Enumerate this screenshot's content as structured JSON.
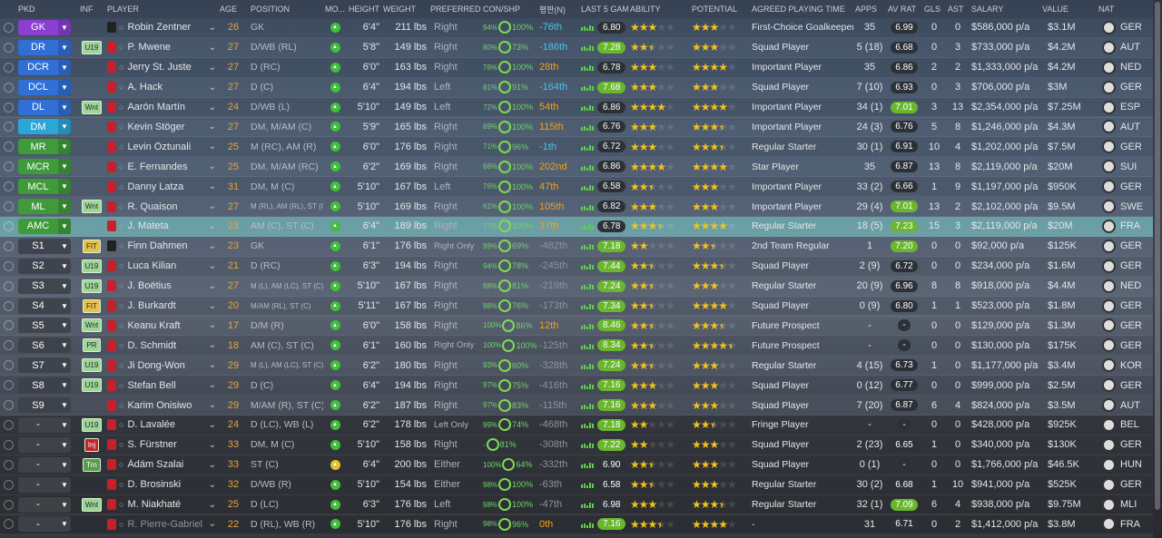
{
  "header": {
    "columns": [
      "PKD",
      "INF",
      "PLAYER",
      "AGE",
      "POSITION",
      "MO...",
      "HEIGHT",
      "WEIGHT",
      "PREFERRED...",
      "CON/SHP",
      "평판(N)",
      "LAST 5 GAM...",
      "ABILITY",
      "POTENTIAL",
      "AGREED PLAYING TIME",
      "APPS",
      "AV RAT",
      "GLS",
      "AST",
      "SALARY",
      "VALUE",
      "NAT"
    ]
  },
  "table": {
    "rows": [
      {
        "pkd": "GK",
        "player": "Robin Zentner",
        "age": 26,
        "position": "GK",
        "height": "6'4\"",
        "weight": "211 lbs",
        "foot": "Right",
        "con": "94%",
        "shp": "100%",
        "rank": "-76th",
        "last5": "6.80",
        "ability": 3,
        "potential": 3,
        "time": "First-Choice Goalkeeper",
        "apps": "35",
        "avrat": "6.99",
        "gls": 0,
        "ast": 0,
        "salary": "$586,000 p/a",
        "value": "$3.1M",
        "nat": "GER"
      },
      {
        "pkd": "DR",
        "inf": "U19",
        "player": "P. Mwene",
        "age": 27,
        "position": "D/WB (RL)",
        "height": "5'8\"",
        "weight": "149 lbs",
        "foot": "Right",
        "con": "80%",
        "shp": "73%",
        "rank": "-186th",
        "last5": "7.28",
        "ability": 2.5,
        "potential": 3,
        "time": "Squad Player",
        "apps": "5 (18)",
        "avrat": "6.68",
        "gls": 0,
        "ast": 3,
        "salary": "$733,000 p/a",
        "value": "$4.2M",
        "nat": "AUT"
      },
      {
        "pkd": "DCR",
        "player": "Jerry St. Juste",
        "age": 27,
        "position": "D (RC)",
        "height": "6'0\"",
        "weight": "163 lbs",
        "foot": "Right",
        "con": "76%",
        "shp": "100%",
        "rank": "28th",
        "last5": "6.78",
        "ability": 3,
        "potential": 4,
        "time": "Important Player",
        "apps": "35",
        "avrat": "6.86",
        "gls": 2,
        "ast": 2,
        "salary": "$1,333,000 p/a",
        "value": "$4.2M",
        "nat": "NED"
      },
      {
        "pkd": "DCL",
        "player": "A. Hack",
        "age": 27,
        "position": "D (C)",
        "height": "6'4\"",
        "weight": "194 lbs",
        "foot": "Left",
        "con": "81%",
        "shp": "91%",
        "rank": "-164th",
        "last5": "7.68",
        "ability": 3,
        "potential": 3,
        "time": "Squad Player",
        "apps": "7 (10)",
        "avrat": "6.93",
        "gls": 0,
        "ast": 3,
        "salary": "$706,000 p/a",
        "value": "$3M",
        "nat": "GER"
      },
      {
        "pkd": "DL",
        "inf": "Wnt",
        "player": "Aarón Martín",
        "age": 24,
        "position": "D/WB (L)",
        "height": "5'10\"",
        "weight": "149 lbs",
        "foot": "Left",
        "con": "72%",
        "shp": "100%",
        "rank": "54th",
        "last5": "6.86",
        "ability": 4,
        "potential": 4,
        "time": "Important Player",
        "apps": "34 (1)",
        "avrat": "7.01",
        "gls": 3,
        "ast": 13,
        "salary": "$2,354,000 p/a",
        "value": "$7.25M",
        "nat": "ESP"
      },
      {
        "pkd": "DM",
        "player": "Kevin Stöger",
        "age": 27,
        "position": "DM, M/AM (C)",
        "height": "5'9\"",
        "weight": "165 lbs",
        "foot": "Right",
        "con": "69%",
        "shp": "100%",
        "rank": "115th",
        "last5": "6.76",
        "ability": 3,
        "potential": 3.5,
        "time": "Important Player",
        "apps": "24 (3)",
        "avrat": "6.76",
        "gls": 5,
        "ast": 8,
        "salary": "$1,246,000 p/a",
        "value": "$4.3M",
        "nat": "AUT"
      },
      {
        "pkd": "MR",
        "player": "Levin Öztunali",
        "age": 25,
        "position": "M (RC), AM (R)",
        "height": "6'0\"",
        "weight": "176 lbs",
        "foot": "Right",
        "con": "71%",
        "shp": "96%",
        "rank": "-1th",
        "last5": "6.72",
        "ability": 3,
        "potential": 3.5,
        "time": "Regular Starter",
        "apps": "30 (1)",
        "avrat": "6.91",
        "gls": 10,
        "ast": 4,
        "salary": "$1,202,000 p/a",
        "value": "$7.5M",
        "nat": "GER"
      },
      {
        "pkd": "MCR",
        "player": "E. Fernandes",
        "age": 25,
        "position": "DM, M/AM (RC)",
        "height": "6'2\"",
        "weight": "169 lbs",
        "foot": "Right",
        "con": "66%",
        "shp": "100%",
        "rank": "202nd",
        "last5": "6.86",
        "ability": 4,
        "potential": 4,
        "time": "Star Player",
        "apps": "35",
        "avrat": "6.87",
        "gls": 13,
        "ast": 8,
        "salary": "$2,119,000 p/a",
        "value": "$20M",
        "nat": "SUI"
      },
      {
        "pkd": "MCL",
        "player": "Danny Latza",
        "age": 31,
        "position": "DM, M (C)",
        "height": "5'10\"",
        "weight": "167 lbs",
        "foot": "Left",
        "con": "76%",
        "shp": "100%",
        "rank": "47th",
        "last5": "6.58",
        "ability": 2.5,
        "potential": 3,
        "time": "Important Player",
        "apps": "33 (2)",
        "avrat": "6.66",
        "gls": 1,
        "ast": 9,
        "salary": "$1,197,000 p/a",
        "value": "$950K",
        "nat": "GER"
      },
      {
        "pkd": "ML",
        "inf": "Wnt",
        "player": "R. Quaison",
        "age": 27,
        "position": "M (RL), AM (RL), ST (C)",
        "height": "5'10\"",
        "weight": "169 lbs",
        "foot": "Right",
        "con": "61%",
        "shp": "100%",
        "rank": "105th",
        "last5": "6.82",
        "ability": 3,
        "potential": 3,
        "time": "Important Player",
        "apps": "29 (4)",
        "avrat": "7.01",
        "gls": 13,
        "ast": 2,
        "salary": "$2,102,000 p/a",
        "value": "$9.5M",
        "nat": "SWE"
      },
      {
        "pkd": "AMC",
        "player": "J. Mateta",
        "age": 23,
        "position": "AM (C), ST (C)",
        "height": "6'4\"",
        "weight": "189 lbs",
        "foot": "Right",
        "con": "77%",
        "shp": "100%",
        "rank": "37th",
        "last5": "6.78",
        "ability": 3.5,
        "potential": 4,
        "time": "Regular Starter",
        "apps": "18 (5)",
        "avrat": "7.23",
        "gls": 15,
        "ast": 3,
        "salary": "$2,119,000 p/a",
        "value": "$20M",
        "nat": "FRA"
      },
      {
        "pkd": "S1",
        "inf": "FIT",
        "player": "Finn Dahmen",
        "age": 23,
        "position": "GK",
        "height": "6'1\"",
        "weight": "176 lbs",
        "foot": "Right Only",
        "con": "99%",
        "shp": "69%",
        "rank": "-482th",
        "last5": "7.18",
        "ability": 2,
        "potential": 2.5,
        "time": "2nd Team Regular",
        "apps": "1",
        "avrat": "7.20",
        "gls": 0,
        "ast": 0,
        "salary": "$92,000 p/a",
        "value": "$125K",
        "nat": "GER"
      },
      {
        "pkd": "S2",
        "inf": "U19",
        "player": "Luca Kilian",
        "age": 21,
        "position": "D (RC)",
        "height": "6'3\"",
        "weight": "194 lbs",
        "foot": "Right",
        "con": "94%",
        "shp": "78%",
        "rank": "-245th",
        "last5": "7.44",
        "ability": 2.5,
        "potential": 3.5,
        "time": "Squad Player",
        "apps": "2 (9)",
        "avrat": "6.72",
        "gls": 0,
        "ast": 0,
        "salary": "$234,000 p/a",
        "value": "$1.6M",
        "nat": "GER"
      },
      {
        "pkd": "S3",
        "inf": "U19",
        "player": "J. Boëtius",
        "age": 27,
        "position": "M (L), AM (LC), ST (C)",
        "height": "5'10\"",
        "weight": "167 lbs",
        "foot": "Right",
        "con": "88%",
        "shp": "81%",
        "rank": "-219th",
        "last5": "7.24",
        "ability": 2.5,
        "potential": 3,
        "time": "Regular Starter",
        "apps": "20 (9)",
        "avrat": "6.96",
        "gls": 8,
        "ast": 8,
        "salary": "$918,000 p/a",
        "value": "$4.4M",
        "nat": "NED"
      },
      {
        "pkd": "S4",
        "inf": "FIT",
        "player": "J. Burkardt",
        "age": 20,
        "position": "M/AM (RL), ST (C)",
        "height": "5'11\"",
        "weight": "167 lbs",
        "foot": "Right",
        "con": "88%",
        "shp": "76%",
        "rank": "-173th",
        "last5": "7.34",
        "ability": 2.5,
        "potential": 4,
        "time": "Squad Player",
        "apps": "0 (9)",
        "avrat": "6.80",
        "gls": 1,
        "ast": 1,
        "salary": "$523,000 p/a",
        "value": "$1.8M",
        "nat": "GER"
      },
      {
        "pkd": "S5",
        "inf": "Wnt",
        "player": "Keanu Kraft",
        "age": 17,
        "position": "D/M (R)",
        "height": "6'0\"",
        "weight": "158 lbs",
        "foot": "Right",
        "con": "100%",
        "shp": "86%",
        "rank": "12th",
        "last5": "8.46",
        "ability": 2.5,
        "potential": 3.5,
        "time": "Future Prospect",
        "apps": "-",
        "avrat": "-",
        "gls": 0,
        "ast": 0,
        "salary": "$129,000 p/a",
        "value": "$1.3M",
        "nat": "GER"
      },
      {
        "pkd": "S6",
        "inf": "PR",
        "player": "D. Schmidt",
        "age": 18,
        "position": "AM (C), ST (C)",
        "height": "6'1\"",
        "weight": "160 lbs",
        "foot": "Right Only",
        "con": "100%",
        "shp": "100%",
        "rank": "-125th",
        "last5": "8.34",
        "ability": 2.5,
        "potential": 4.5,
        "time": "Future Prospect",
        "apps": "-",
        "avrat": "-",
        "gls": 0,
        "ast": 0,
        "salary": "$130,000 p/a",
        "value": "$175K",
        "nat": "GER"
      },
      {
        "pkd": "S7",
        "inf": "U19",
        "player": "Ji Dong-Won",
        "age": 29,
        "position": "M (L), AM (LC), ST (C)",
        "height": "6'2\"",
        "weight": "180 lbs",
        "foot": "Right",
        "con": "93%",
        "shp": "60%",
        "rank": "-328th",
        "last5": "7.24",
        "ability": 2.5,
        "potential": 3,
        "time": "Regular Starter",
        "apps": "4 (15)",
        "avrat": "6.73",
        "gls": 1,
        "ast": 0,
        "salary": "$1,177,000 p/a",
        "value": "$3.4M",
        "nat": "KOR"
      },
      {
        "pkd": "S8",
        "inf": "U19",
        "player": "Stefan Bell",
        "age": 29,
        "position": "D (C)",
        "height": "6'4\"",
        "weight": "194 lbs",
        "foot": "Right",
        "con": "97%",
        "shp": "75%",
        "rank": "-416th",
        "last5": "7.16",
        "ability": 3,
        "potential": 3,
        "time": "Squad Player",
        "apps": "0 (12)",
        "avrat": "6.77",
        "gls": 0,
        "ast": 0,
        "salary": "$999,000 p/a",
        "value": "$2.5M",
        "nat": "GER"
      },
      {
        "pkd": "S9",
        "player": "Karim Onisiwo",
        "age": 29,
        "position": "M/AM (R), ST (C)",
        "height": "6'2\"",
        "weight": "187 lbs",
        "foot": "Right",
        "con": "97%",
        "shp": "83%",
        "rank": "-115th",
        "last5": "7.16",
        "ability": 3,
        "potential": 3,
        "time": "Squad Player",
        "apps": "7 (20)",
        "avrat": "6.87",
        "gls": 6,
        "ast": 4,
        "salary": "$824,000 p/a",
        "value": "$3.5M",
        "nat": "AUT"
      },
      {
        "pkd": "-",
        "inf": "U19",
        "player": "D. Lavalée",
        "age": 24,
        "position": "D (LC), WB (L)",
        "height": "6'2\"",
        "weight": "178 lbs",
        "foot": "Left Only",
        "con": "99%",
        "shp": "74%",
        "rank": "-468th",
        "last5": "7.18",
        "ability": 2,
        "potential": 2.5,
        "time": "Fringe Player",
        "apps": "-",
        "avrat": "-",
        "gls": 0,
        "ast": 0,
        "salary": "$428,000 p/a",
        "value": "$925K",
        "nat": "BEL"
      },
      {
        "pkd": "-",
        "inf": "Inj",
        "player": "S. Fürstner",
        "age": 33,
        "position": "DM, M (C)",
        "height": "5'10\"",
        "weight": "158 lbs",
        "foot": "Right",
        "con": "-",
        "shp": "81%",
        "rank": "-308th",
        "last5": "7.22",
        "ability": 2,
        "potential": 3,
        "time": "Squad Player",
        "apps": "2 (23)",
        "avrat": "6.65",
        "gls": 1,
        "ast": 0,
        "salary": "$340,000 p/a",
        "value": "$130K",
        "nat": "GER"
      },
      {
        "pkd": "-",
        "inf": "Trn",
        "player": "Ádám Szalai",
        "age": 33,
        "position": "ST (C)",
        "height": "6'4\"",
        "weight": "200 lbs",
        "foot": "Either",
        "con": "100%",
        "shp": "64%",
        "rank": "-332th",
        "last5": "6.90",
        "ability": 2.5,
        "potential": 3,
        "time": "Squad Player",
        "apps": "0 (1)",
        "avrat": "-",
        "gls": 0,
        "ast": 0,
        "salary": "$1,766,000 p/a",
        "value": "$46.5K",
        "nat": "HUN"
      },
      {
        "pkd": "-",
        "player": "D. Brosinski",
        "age": 32,
        "position": "D/WB (R)",
        "height": "5'10\"",
        "weight": "154 lbs",
        "foot": "Either",
        "con": "98%",
        "shp": "100%",
        "rank": "-63th",
        "last5": "6.58",
        "ability": 2.5,
        "potential": 3,
        "time": "Regular Starter",
        "apps": "30 (2)",
        "avrat": "6.68",
        "gls": 1,
        "ast": 10,
        "salary": "$941,000 p/a",
        "value": "$525K",
        "nat": "GER"
      },
      {
        "pkd": "-",
        "inf": "Wnt",
        "player": "M. Niakhaté",
        "age": 25,
        "position": "D (LC)",
        "height": "6'3\"",
        "weight": "176 lbs",
        "foot": "Left",
        "con": "98%",
        "shp": "100%",
        "rank": "-47th",
        "last5": "6.98",
        "ability": 3,
        "potential": 3.5,
        "time": "Regular Starter",
        "apps": "32 (1)",
        "avrat": "7.09",
        "gls": 6,
        "ast": 4,
        "salary": "$938,000 p/a",
        "value": "$9.75M",
        "nat": "MLI"
      },
      {
        "pkd": "-",
        "player": "R. Pierre-Gabriel",
        "age": 22,
        "position": "D (RL), WB (R)",
        "height": "5'10\"",
        "weight": "176 lbs",
        "foot": "Right",
        "con": "98%",
        "shp": "96%",
        "rank": "0th",
        "last5": "7.16",
        "ability": 3.5,
        "potential": 4,
        "time": "-",
        "apps": "31",
        "avrat": "6.71",
        "gls": 0,
        "ast": 2,
        "salary": "$1,412,000 p/a",
        "value": "$3.8M",
        "nat": "FRA"
      }
    ]
  }
}
